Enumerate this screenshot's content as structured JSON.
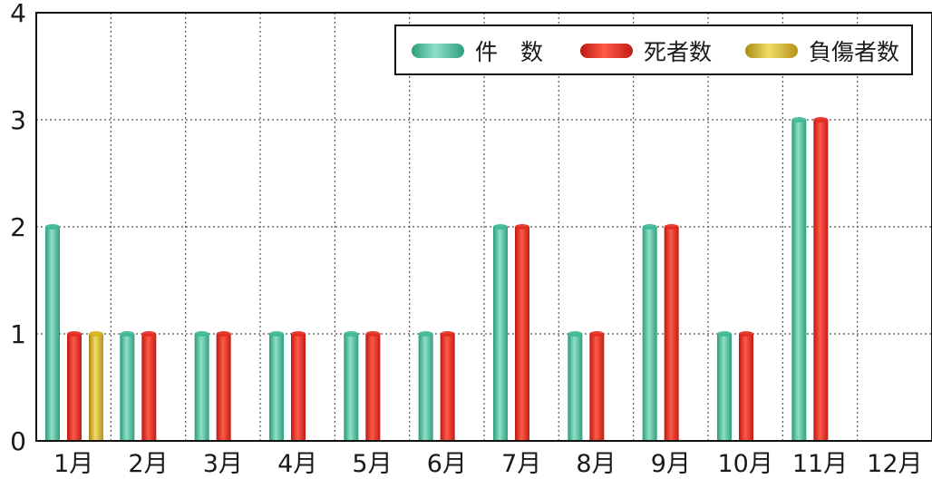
{
  "chart_data": {
    "type": "bar",
    "categories": [
      "1月",
      "2月",
      "3月",
      "4月",
      "5月",
      "6月",
      "7月",
      "8月",
      "9月",
      "10月",
      "11月",
      "12月"
    ],
    "series": [
      {
        "name": "件　数",
        "values": [
          2,
          1,
          1,
          1,
          1,
          1,
          2,
          1,
          2,
          1,
          3,
          0
        ],
        "color": "#3db896"
      },
      {
        "name": "死者数",
        "values": [
          1,
          1,
          1,
          1,
          1,
          1,
          2,
          1,
          2,
          1,
          3,
          0
        ],
        "color": "#e32a1f"
      },
      {
        "name": "負傷者数",
        "values": [
          1,
          0,
          0,
          0,
          0,
          0,
          0,
          0,
          0,
          0,
          0,
          0
        ],
        "color": "#d6b21c"
      }
    ],
    "y_ticks": [
      "0",
      "1",
      "2",
      "3",
      "4"
    ],
    "ylim": [
      0,
      4
    ],
    "grid": true,
    "legend_position": "top-right"
  }
}
